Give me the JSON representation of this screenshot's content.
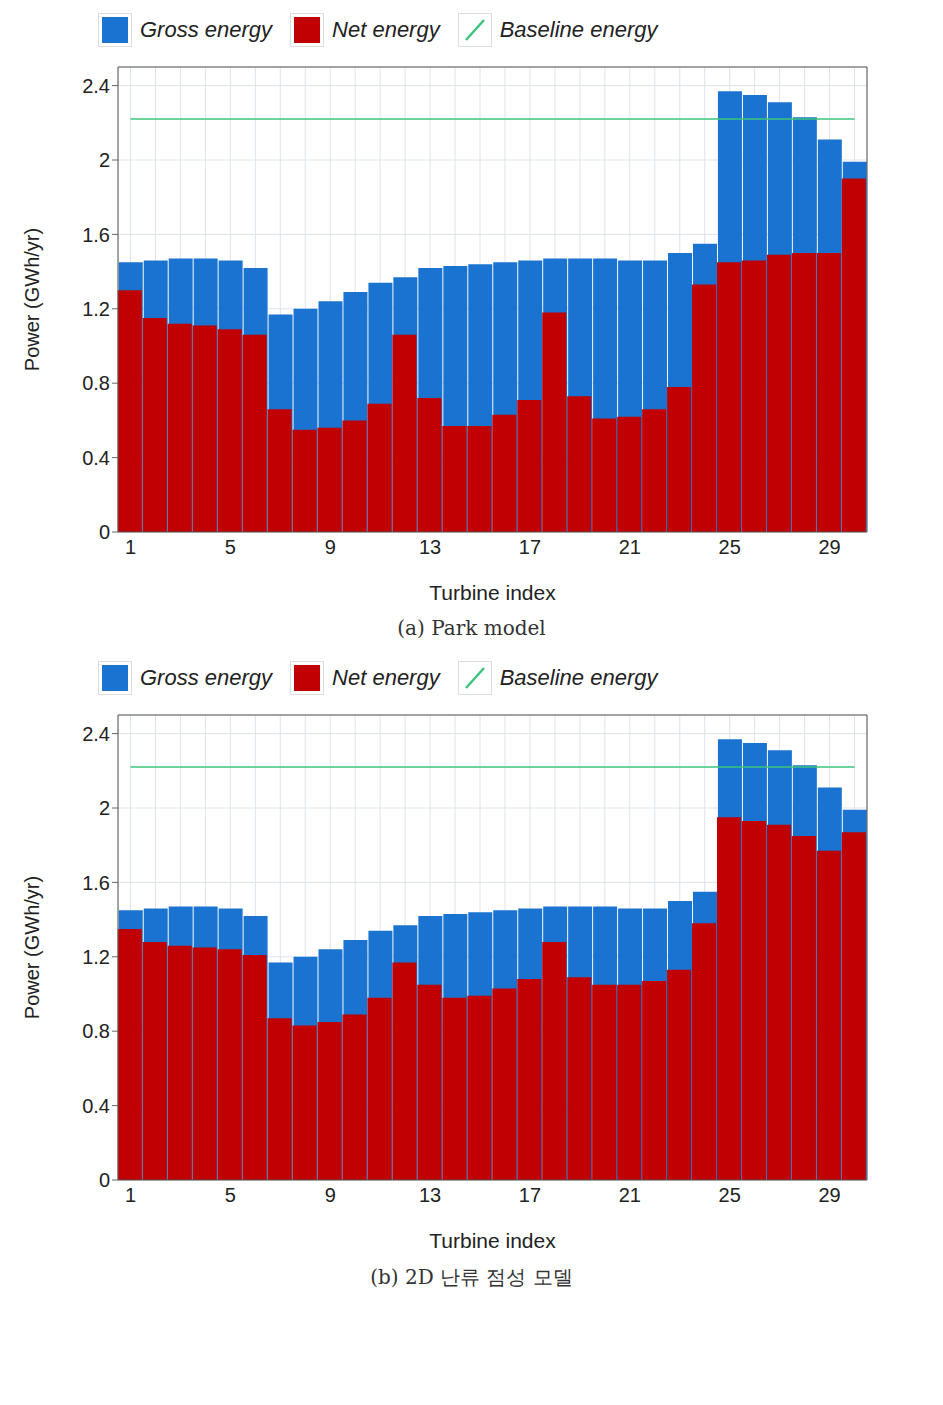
{
  "chart_data": [
    {
      "type": "bar",
      "caption": "(a) Park model",
      "x_label": "Turbine index",
      "y_label": "Power (GWh/yr)",
      "categories": [
        "1",
        null,
        null,
        null,
        "5",
        null,
        null,
        null,
        "9",
        null,
        null,
        null,
        "13",
        null,
        null,
        null,
        "17",
        null,
        null,
        null,
        "21",
        null,
        null,
        null,
        "25",
        null,
        null,
        null,
        "29",
        null
      ],
      "ylim": [
        0,
        2.5
      ],
      "yticks": [
        0,
        0.4,
        0.8,
        1.2,
        1.6,
        2.0,
        2.4
      ],
      "grid": true,
      "legend": "top",
      "series": [
        {
          "name": "Gross energy",
          "color": "#1a73d1",
          "type": "bar",
          "values": [
            1.45,
            1.46,
            1.47,
            1.47,
            1.46,
            1.42,
            1.17,
            1.2,
            1.24,
            1.29,
            1.34,
            1.37,
            1.42,
            1.43,
            1.44,
            1.45,
            1.46,
            1.47,
            1.47,
            1.47,
            1.46,
            1.46,
            1.5,
            1.55,
            2.37,
            2.35,
            2.31,
            2.23,
            2.11,
            1.99
          ]
        },
        {
          "name": "Net energy",
          "color": "#c00000",
          "type": "bar",
          "values": [
            1.3,
            1.15,
            1.12,
            1.11,
            1.09,
            1.06,
            0.66,
            0.55,
            0.56,
            0.6,
            0.69,
            1.06,
            0.72,
            0.57,
            0.57,
            0.63,
            0.71,
            1.18,
            0.73,
            0.61,
            0.62,
            0.66,
            0.78,
            1.33,
            1.45,
            1.46,
            1.49,
            1.5,
            1.5,
            1.9
          ]
        },
        {
          "name": "Baseline energy",
          "color": "#3cc47c",
          "type": "line",
          "values": [
            2.22,
            2.22,
            2.22,
            2.22,
            2.22,
            2.22,
            2.22,
            2.22,
            2.22,
            2.22,
            2.22,
            2.22,
            2.22,
            2.22,
            2.22,
            2.22,
            2.22,
            2.22,
            2.22,
            2.22,
            2.22,
            2.22,
            2.22,
            2.22,
            2.22,
            2.22,
            2.22,
            2.22,
            2.22,
            2.22
          ]
        }
      ]
    },
    {
      "type": "bar",
      "caption": "(b) 2D 난류 점성 모델",
      "x_label": "Turbine index",
      "y_label": "Power (GWh/yr)",
      "categories": [
        "1",
        null,
        null,
        null,
        "5",
        null,
        null,
        null,
        "9",
        null,
        null,
        null,
        "13",
        null,
        null,
        null,
        "17",
        null,
        null,
        null,
        "21",
        null,
        null,
        null,
        "25",
        null,
        null,
        null,
        "29",
        null
      ],
      "ylim": [
        0,
        2.5
      ],
      "yticks": [
        0,
        0.4,
        0.8,
        1.2,
        1.6,
        2.0,
        2.4
      ],
      "grid": true,
      "legend": "top",
      "series": [
        {
          "name": "Gross energy",
          "color": "#1a73d1",
          "type": "bar",
          "values": [
            1.45,
            1.46,
            1.47,
            1.47,
            1.46,
            1.42,
            1.17,
            1.2,
            1.24,
            1.29,
            1.34,
            1.37,
            1.42,
            1.43,
            1.44,
            1.45,
            1.46,
            1.47,
            1.47,
            1.47,
            1.46,
            1.46,
            1.5,
            1.55,
            2.37,
            2.35,
            2.31,
            2.23,
            2.11,
            1.99
          ]
        },
        {
          "name": "Net energy",
          "color": "#c00000",
          "type": "bar",
          "values": [
            1.35,
            1.28,
            1.26,
            1.25,
            1.24,
            1.21,
            0.87,
            0.83,
            0.85,
            0.89,
            0.98,
            1.17,
            1.05,
            0.98,
            0.99,
            1.03,
            1.08,
            1.28,
            1.09,
            1.05,
            1.05,
            1.07,
            1.13,
            1.38,
            1.95,
            1.93,
            1.91,
            1.85,
            1.77,
            1.87
          ]
        },
        {
          "name": "Baseline energy",
          "color": "#3cc47c",
          "type": "line",
          "values": [
            2.22,
            2.22,
            2.22,
            2.22,
            2.22,
            2.22,
            2.22,
            2.22,
            2.22,
            2.22,
            2.22,
            2.22,
            2.22,
            2.22,
            2.22,
            2.22,
            2.22,
            2.22,
            2.22,
            2.22,
            2.22,
            2.22,
            2.22,
            2.22,
            2.22,
            2.22,
            2.22,
            2.22,
            2.22,
            2.22
          ]
        }
      ]
    }
  ]
}
